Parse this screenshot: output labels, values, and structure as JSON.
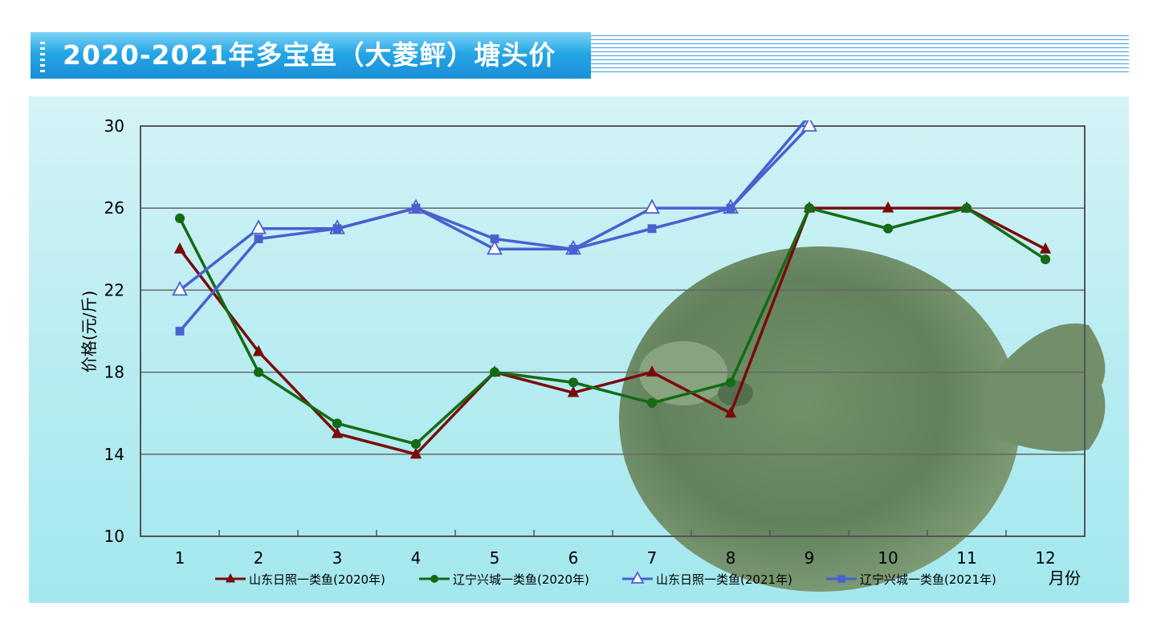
{
  "header": {
    "title": "2020-2021年多宝鱼（大菱鲆）塘头价"
  },
  "chart_data": {
    "type": "line",
    "title": "2020-2021年多宝鱼（大菱鲆）塘头价",
    "xlabel": "月份",
    "ylabel": "价格(元/斤)",
    "categories": [
      "1",
      "2",
      "3",
      "4",
      "5",
      "6",
      "7",
      "8",
      "9",
      "10",
      "11",
      "12"
    ],
    "yticks": [
      "10",
      "14",
      "18",
      "22",
      "26",
      "30"
    ],
    "ylim": [
      10,
      30
    ],
    "grid": true,
    "legend": "bottom",
    "background_image": "turbot-fish",
    "series": [
      {
        "name": "山东日照一类鱼(2020年)",
        "color": "#7a0a0a",
        "marker": "triangle-filled",
        "values": [
          24,
          19,
          15,
          14,
          18,
          17,
          18,
          16,
          26,
          26,
          26,
          24
        ]
      },
      {
        "name": "辽宁兴城一类鱼(2020年)",
        "color": "#146b14",
        "marker": "circle",
        "values": [
          25.5,
          18,
          15.5,
          14.5,
          18,
          17.5,
          16.5,
          17.5,
          26,
          25,
          26,
          23.5
        ]
      },
      {
        "name": "山东日照一类鱼(2021年)",
        "color": "#4a5fd0",
        "marker": "triangle-open",
        "values": [
          22,
          25,
          25,
          26,
          24,
          24,
          26,
          26,
          30,
          null,
          null,
          null
        ]
      },
      {
        "name": "辽宁兴城一类鱼(2021年)",
        "color": "#4a5fd0",
        "marker": "square",
        "values": [
          20,
          24.5,
          25,
          26,
          24.5,
          24,
          25,
          26,
          30.5,
          null,
          null,
          null
        ]
      }
    ]
  }
}
